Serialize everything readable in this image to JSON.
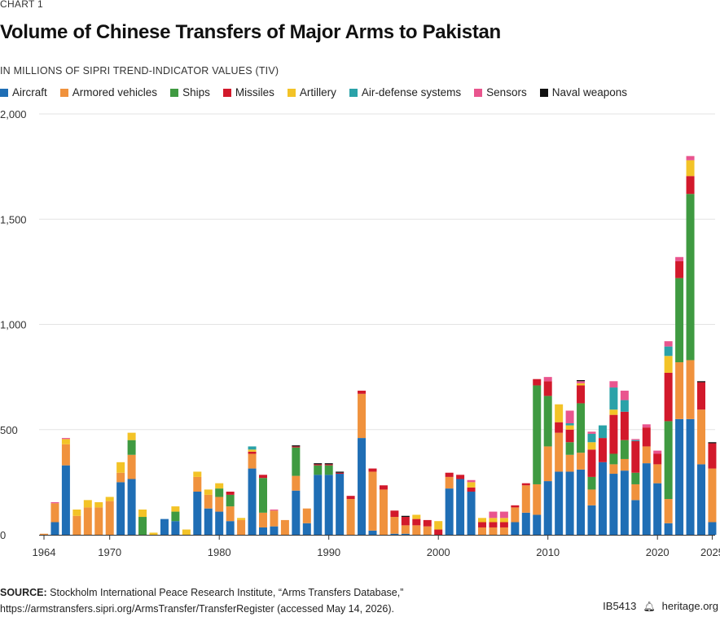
{
  "header": {
    "kicker": "CHART 1",
    "title": "Volume of Chinese Transfers of Major Arms to Pakistan",
    "units": "IN MILLIONS OF SIPRI TREND-INDICATOR VALUES (TIV)"
  },
  "footer": {
    "source_label": "SOURCE:",
    "source_text": "Stockholm International Peace Research Institute, “Arms Transfers Database,”",
    "source_url": "https://armstransfers.sipri.org/ArmsTransfer/TransferRegister (accessed May 14, 2026).",
    "id": "IB5413",
    "logo_icon": "heritage-bell-icon",
    "site": "heritage.org"
  },
  "chart_data": {
    "type": "bar",
    "stacked": true,
    "ylim": [
      0,
      2000
    ],
    "yticks": [
      0,
      500,
      1000,
      1500,
      2000
    ],
    "ytick_labels": [
      "0",
      "500",
      "1,000",
      "1,500",
      "2,000"
    ],
    "xticks": [
      1964,
      1970,
      1980,
      1990,
      2000,
      2010,
      2020,
      2025
    ],
    "grid": true,
    "legend_position": "top",
    "categories": [
      1964,
      1965,
      1966,
      1967,
      1968,
      1969,
      1970,
      1971,
      1972,
      1973,
      1974,
      1975,
      1976,
      1977,
      1978,
      1979,
      1980,
      1981,
      1982,
      1983,
      1984,
      1985,
      1986,
      1987,
      1988,
      1989,
      1990,
      1991,
      1992,
      1993,
      1994,
      1995,
      1996,
      1997,
      1998,
      1999,
      2000,
      2001,
      2002,
      2003,
      2004,
      2005,
      2006,
      2007,
      2008,
      2009,
      2010,
      2011,
      2012,
      2013,
      2014,
      2015,
      2016,
      2017,
      2018,
      2019,
      2020,
      2021,
      2022,
      2023,
      2024,
      2025
    ],
    "series": [
      {
        "name": "Aircraft",
        "color": "#1f6eb5",
        "values": [
          0,
          60,
          330,
          0,
          0,
          0,
          0,
          250,
          265,
          0,
          0,
          75,
          65,
          0,
          205,
          125,
          110,
          65,
          0,
          315,
          35,
          40,
          0,
          210,
          55,
          285,
          285,
          290,
          0,
          460,
          20,
          0,
          5,
          5,
          0,
          0,
          0,
          220,
          265,
          205,
          0,
          0,
          0,
          60,
          105,
          95,
          255,
          300,
          300,
          310,
          140,
          345,
          290,
          305,
          165,
          340,
          245,
          55,
          550,
          550,
          335,
          60
        ]
      },
      {
        "name": "Armored vehicles",
        "color": "#f0923d",
        "values": [
          5,
          90,
          100,
          90,
          130,
          130,
          160,
          45,
          115,
          0,
          0,
          0,
          0,
          0,
          70,
          65,
          70,
          70,
          70,
          70,
          70,
          75,
          70,
          70,
          70,
          0,
          0,
          0,
          170,
          210,
          280,
          215,
          80,
          40,
          45,
          40,
          0,
          55,
          0,
          0,
          35,
          35,
          35,
          70,
          130,
          145,
          165,
          185,
          80,
          80,
          75,
          0,
          45,
          55,
          75,
          80,
          90,
          115,
          270,
          280,
          260,
          255
        ]
      },
      {
        "name": "Ships",
        "color": "#3f9a41",
        "values": [
          0,
          0,
          0,
          0,
          0,
          0,
          0,
          0,
          70,
          85,
          0,
          0,
          45,
          0,
          0,
          0,
          40,
          55,
          0,
          0,
          165,
          0,
          0,
          135,
          0,
          45,
          45,
          0,
          0,
          0,
          0,
          0,
          0,
          0,
          0,
          0,
          0,
          0,
          0,
          0,
          0,
          0,
          0,
          0,
          0,
          470,
          240,
          0,
          60,
          235,
          60,
          0,
          50,
          90,
          55,
          0,
          0,
          370,
          400,
          790,
          0,
          0
        ]
      },
      {
        "name": "Missiles",
        "color": "#d2192b",
        "values": [
          0,
          0,
          0,
          0,
          0,
          0,
          0,
          0,
          0,
          0,
          0,
          0,
          0,
          0,
          0,
          0,
          0,
          15,
          0,
          10,
          15,
          0,
          0,
          5,
          0,
          5,
          5,
          5,
          15,
          15,
          15,
          20,
          30,
          40,
          30,
          30,
          25,
          20,
          20,
          20,
          25,
          25,
          25,
          10,
          10,
          30,
          70,
          50,
          60,
          85,
          130,
          115,
          185,
          135,
          150,
          90,
          50,
          230,
          80,
          85,
          130,
          120
        ]
      },
      {
        "name": "Artillery",
        "color": "#f3c327",
        "values": [
          0,
          0,
          25,
          30,
          35,
          25,
          20,
          50,
          35,
          35,
          10,
          0,
          25,
          25,
          25,
          25,
          25,
          0,
          10,
          10,
          0,
          0,
          0,
          0,
          0,
          0,
          0,
          0,
          0,
          0,
          0,
          0,
          0,
          0,
          20,
          0,
          40,
          0,
          0,
          25,
          20,
          20,
          20,
          0,
          0,
          0,
          0,
          85,
          20,
          10,
          35,
          0,
          25,
          0,
          0,
          0,
          0,
          80,
          0,
          75,
          0,
          0
        ]
      },
      {
        "name": "Air-defense systems",
        "color": "#2aa2a8",
        "values": [
          0,
          0,
          0,
          0,
          0,
          0,
          0,
          0,
          0,
          0,
          0,
          0,
          0,
          0,
          0,
          0,
          0,
          0,
          0,
          15,
          0,
          0,
          0,
          0,
          0,
          0,
          0,
          0,
          0,
          0,
          0,
          0,
          0,
          0,
          0,
          0,
          0,
          0,
          0,
          0,
          0,
          0,
          0,
          0,
          0,
          0,
          0,
          0,
          10,
          0,
          40,
          60,
          105,
          55,
          5,
          0,
          0,
          45,
          0,
          0,
          0,
          0
        ]
      },
      {
        "name": "Sensors",
        "color": "#e9558e",
        "values": [
          0,
          5,
          5,
          0,
          0,
          0,
          0,
          0,
          0,
          0,
          0,
          0,
          0,
          0,
          0,
          0,
          0,
          0,
          0,
          0,
          0,
          5,
          0,
          0,
          0,
          0,
          0,
          0,
          0,
          0,
          0,
          0,
          0,
          0,
          0,
          0,
          0,
          0,
          0,
          10,
          0,
          30,
          30,
          0,
          0,
          0,
          20,
          0,
          60,
          10,
          10,
          0,
          30,
          45,
          5,
          15,
          15,
          25,
          20,
          20,
          0,
          0
        ]
      },
      {
        "name": "Naval weapons",
        "color": "#111111",
        "values": [
          0,
          0,
          0,
          0,
          0,
          0,
          0,
          0,
          0,
          0,
          0,
          0,
          0,
          0,
          0,
          0,
          0,
          0,
          0,
          0,
          0,
          0,
          0,
          5,
          0,
          5,
          5,
          5,
          0,
          0,
          0,
          0,
          0,
          5,
          0,
          0,
          0,
          0,
          0,
          0,
          0,
          0,
          0,
          0,
          0,
          0,
          0,
          0,
          0,
          5,
          0,
          0,
          0,
          0,
          0,
          0,
          0,
          0,
          0,
          0,
          5,
          5
        ]
      }
    ]
  }
}
